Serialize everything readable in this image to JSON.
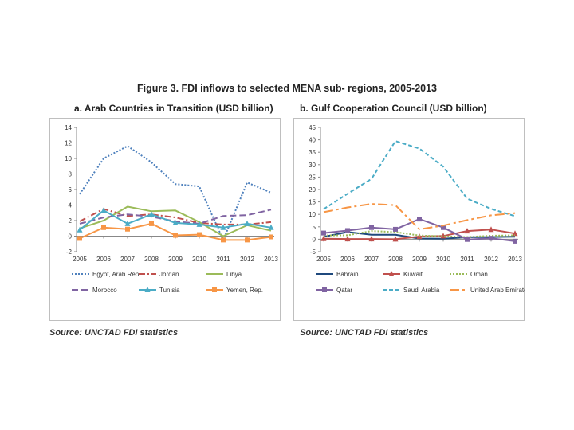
{
  "figure_title": "Figure 3.  FDI inflows to selected MENA sub- regions, 2005-2013",
  "source_note": "Source: UNCTAD FDI statistics",
  "chart_data": [
    {
      "type": "line",
      "panel_title": "a. Arab Countries in Transition (USD billion)",
      "title": "a. Arab Countries in Transition (USD billion)",
      "xlabel": "",
      "ylabel": "",
      "categories": [
        "2005",
        "2006",
        "2007",
        "2008",
        "2009",
        "2010",
        "2011",
        "2012",
        "2013"
      ],
      "ylim": [
        -2,
        14
      ],
      "yticks": [
        -2,
        0,
        2,
        4,
        6,
        8,
        10,
        12,
        14
      ],
      "grid": false,
      "legend_position": "bottom",
      "series": [
        {
          "name": "Egypt, Arab Rep.",
          "color": "#4f81bd",
          "dash": "2,2",
          "marker": "none",
          "values": [
            5.4,
            10.0,
            11.6,
            9.5,
            6.7,
            6.4,
            -0.5,
            6.9,
            5.6
          ]
        },
        {
          "name": "Jordan",
          "color": "#c0504d",
          "dash": "8,3,2,3",
          "marker": "none",
          "values": [
            1.9,
            3.5,
            2.6,
            2.8,
            2.4,
            1.7,
            1.5,
            1.5,
            1.8
          ]
        },
        {
          "name": "Libya",
          "color": "#9bbb59",
          "dash": "",
          "marker": "none",
          "values": [
            1.0,
            2.0,
            3.8,
            3.2,
            3.3,
            1.8,
            0.0,
            1.4,
            0.7
          ]
        },
        {
          "name": "Morocco",
          "color": "#8064a2",
          "dash": "8,4",
          "marker": "none",
          "values": [
            1.6,
            2.4,
            2.8,
            2.5,
            1.9,
            1.6,
            2.6,
            2.7,
            3.4
          ]
        },
        {
          "name": "Tunisia",
          "color": "#4bacc6",
          "dash": "",
          "marker": "triangle",
          "values": [
            0.8,
            3.3,
            1.6,
            2.8,
            1.7,
            1.5,
            1.1,
            1.6,
            1.1
          ]
        },
        {
          "name": "Yemen, Rep.",
          "color": "#f79646",
          "dash": "",
          "marker": "square",
          "values": [
            -0.3,
            1.1,
            0.9,
            1.6,
            0.1,
            0.2,
            -0.5,
            -0.5,
            -0.1
          ]
        }
      ]
    },
    {
      "type": "line",
      "panel_title": "b. Gulf Cooperation Council (USD billion)",
      "title": "b. Gulf Cooperation Council (USD billion)",
      "xlabel": "",
      "ylabel": "",
      "categories": [
        "2005",
        "2006",
        "2007",
        "2008",
        "2009",
        "2010",
        "2011",
        "2012",
        "2013"
      ],
      "ylim": [
        -5,
        45
      ],
      "yticks": [
        -5,
        0,
        5,
        10,
        15,
        20,
        25,
        30,
        35,
        40,
        45
      ],
      "grid": false,
      "legend_position": "bottom",
      "series": [
        {
          "name": "Bahrain",
          "color": "#1f497d",
          "dash": "",
          "marker": "none",
          "values": [
            1.0,
            2.9,
            1.8,
            1.8,
            0.3,
            0.2,
            0.8,
            0.9,
            1.0
          ]
        },
        {
          "name": "Kuwait",
          "color": "#c0504d",
          "dash": "",
          "marker": "triangle",
          "values": [
            0.2,
            0.1,
            0.1,
            0.0,
            1.1,
            1.3,
            3.3,
            3.9,
            2.3
          ]
        },
        {
          "name": "Oman",
          "color": "#9bbb59",
          "dash": "2,2",
          "marker": "none",
          "values": [
            1.5,
            1.6,
            3.3,
            2.9,
            1.5,
            1.2,
            0.9,
            1.4,
            1.6
          ]
        },
        {
          "name": "Qatar",
          "color": "#8064a2",
          "dash": "",
          "marker": "square",
          "values": [
            2.5,
            3.5,
            4.7,
            4.0,
            8.1,
            4.7,
            -0.1,
            0.4,
            -0.8
          ]
        },
        {
          "name": "Saudi Arabia",
          "color": "#4bacc6",
          "dash": "5,3",
          "marker": "none",
          "values": [
            12.1,
            18.3,
            24.3,
            39.5,
            36.5,
            29.2,
            16.3,
            12.2,
            9.3
          ]
        },
        {
          "name": "United Arab Emirates",
          "color": "#f79646",
          "dash": "12,4,3,4",
          "marker": "none",
          "values": [
            10.9,
            12.8,
            14.2,
            13.7,
            4.0,
            5.5,
            7.7,
            9.6,
            10.5
          ]
        }
      ]
    }
  ]
}
